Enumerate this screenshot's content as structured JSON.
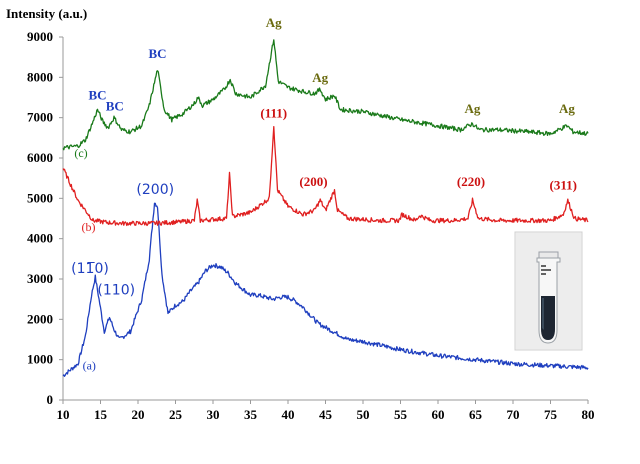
{
  "chart_data": {
    "type": "line",
    "ylabel": "Intensity (a.u.)",
    "xlim": [
      10,
      80
    ],
    "ylim": [
      0,
      9000
    ],
    "xticks": [
      "10",
      "15",
      "20",
      "25",
      "30",
      "35",
      "40",
      "45",
      "50",
      "55",
      "60",
      "65",
      "70",
      "75",
      "80"
    ],
    "yticks": [
      "0",
      "1000",
      "2000",
      "3000",
      "4000",
      "5000",
      "6000",
      "7000",
      "8000",
      "9000"
    ],
    "grid": false,
    "series": [
      {
        "name": "(a)",
        "color": "#1f3fbf",
        "x": [
          10,
          12,
          13,
          13.8,
          14.3,
          14.8,
          15.5,
          16.2,
          16.8,
          17.5,
          19,
          20.5,
          21.5,
          22.2,
          22.6,
          23.2,
          24,
          25,
          26,
          27,
          28,
          29,
          30,
          31,
          32,
          33,
          34,
          35,
          36,
          37,
          38,
          39,
          40,
          41,
          42,
          43,
          44,
          46,
          48,
          50,
          55,
          60,
          65,
          70,
          75,
          80
        ],
        "y": [
          600,
          900,
          1600,
          2600,
          3050,
          2500,
          1700,
          2050,
          1750,
          1500,
          1700,
          2500,
          3500,
          4900,
          4800,
          3100,
          2150,
          2350,
          2450,
          2700,
          2900,
          3200,
          3350,
          3300,
          3150,
          2900,
          2750,
          2600,
          2600,
          2550,
          2500,
          2550,
          2550,
          2450,
          2300,
          2100,
          1900,
          1700,
          1500,
          1450,
          1250,
          1100,
          1000,
          900,
          850,
          800
        ]
      },
      {
        "name": "(b)",
        "color": "#e02020",
        "x": [
          10,
          12,
          14,
          16,
          18,
          20,
          22,
          24,
          26,
          27.5,
          27.9,
          28.3,
          30,
          31.8,
          32.2,
          32.6,
          35,
          37.5,
          38.1,
          38.6,
          40,
          42,
          43.5,
          44.3,
          45,
          46.2,
          46.6,
          48,
          50,
          52,
          54.8,
          55.2,
          57,
          57.6,
          59,
          62,
          64,
          64.6,
          65.4,
          68,
          70,
          72,
          75,
          76.7,
          77.3,
          78.2,
          80
        ],
        "y": [
          5750,
          4950,
          4450,
          4400,
          4380,
          4380,
          4380,
          4400,
          4420,
          4450,
          4950,
          4450,
          4480,
          4500,
          5600,
          4550,
          4650,
          5000,
          6800,
          5200,
          4800,
          4600,
          4700,
          4950,
          4700,
          5200,
          4700,
          4500,
          4480,
          4450,
          4450,
          4600,
          4450,
          4580,
          4450,
          4450,
          4500,
          4950,
          4500,
          4450,
          4450,
          4450,
          4450,
          4600,
          4950,
          4500,
          4450
        ]
      },
      {
        "name": "(c)",
        "color": "#1a7a1a",
        "x": [
          10,
          12,
          13,
          14,
          14.6,
          15.3,
          16,
          16.8,
          17.8,
          19,
          20.5,
          21.5,
          22.6,
          23.5,
          24.5,
          26,
          27.5,
          28,
          28.6,
          30,
          31.5,
          32.3,
          33,
          35,
          37,
          38.1,
          38.7,
          40,
          42,
          43.5,
          44.3,
          45,
          46.2,
          47,
          50,
          55,
          60,
          63,
          64.6,
          65.5,
          68,
          72,
          75,
          77.2,
          78,
          80
        ],
        "y": [
          6250,
          6300,
          6450,
          6900,
          7200,
          6900,
          6750,
          7000,
          6700,
          6650,
          6800,
          7300,
          8200,
          7200,
          6950,
          7100,
          7350,
          7500,
          7300,
          7450,
          7700,
          7950,
          7600,
          7500,
          7800,
          8950,
          7900,
          7750,
          7650,
          7600,
          7700,
          7450,
          7550,
          7200,
          7150,
          6950,
          6800,
          6700,
          6850,
          6700,
          6700,
          6650,
          6600,
          6800,
          6650,
          6600
        ]
      }
    ],
    "annotations": [
      {
        "text": "BC",
        "x": 14.6,
        "y": 7450,
        "color": "#1f3fbf",
        "style": "bold"
      },
      {
        "text": "BC",
        "x": 16.9,
        "y": 7180,
        "color": "#1f3fbf",
        "style": "bold"
      },
      {
        "text": "BC",
        "x": 22.6,
        "y": 8480,
        "color": "#1f3fbf",
        "style": "bold"
      },
      {
        "text": "Ag",
        "x": 38.1,
        "y": 9250,
        "color": "#6b6b10",
        "style": "bold"
      },
      {
        "text": "Ag",
        "x": 44.3,
        "y": 7880,
        "color": "#6b6b10",
        "style": "bold"
      },
      {
        "text": "Ag",
        "x": 64.6,
        "y": 7120,
        "color": "#6b6b10",
        "style": "bold"
      },
      {
        "text": "Ag",
        "x": 77.2,
        "y": 7120,
        "color": "#6b6b10",
        "style": "bold"
      },
      {
        "text": "(111)",
        "x": 38.1,
        "y": 7010,
        "color": "#cc1111",
        "style": "bold"
      },
      {
        "text": "(200)",
        "x": 43.4,
        "y": 5310,
        "color": "#cc1111",
        "style": "bold"
      },
      {
        "text": "(220)",
        "x": 64.4,
        "y": 5310,
        "color": "#cc1111",
        "style": "bold"
      },
      {
        "text": "(311)",
        "x": 76.7,
        "y": 5220,
        "color": "#cc1111",
        "style": "bold"
      },
      {
        "text": "(200)",
        "x": 22.3,
        "y": 5110,
        "color": "#1f3fbf",
        "style": "plain"
      },
      {
        "text": "(11̅0)",
        "x": 13.6,
        "y": 3150,
        "color": "#1f3fbf",
        "style": "plain"
      },
      {
        "text": "(110)",
        "x": 17.1,
        "y": 2610,
        "color": "#1f3fbf",
        "style": "plain"
      }
    ],
    "series_labels": [
      {
        "text": "(c)",
        "x": 12.4,
        "y": 6030,
        "color": "#1a7a1a"
      },
      {
        "text": "(b)",
        "x": 13.4,
        "y": 4190,
        "color": "#e02020"
      },
      {
        "text": "(a)",
        "x": 13.5,
        "y": 760,
        "color": "#1f3fbf"
      }
    ]
  }
}
